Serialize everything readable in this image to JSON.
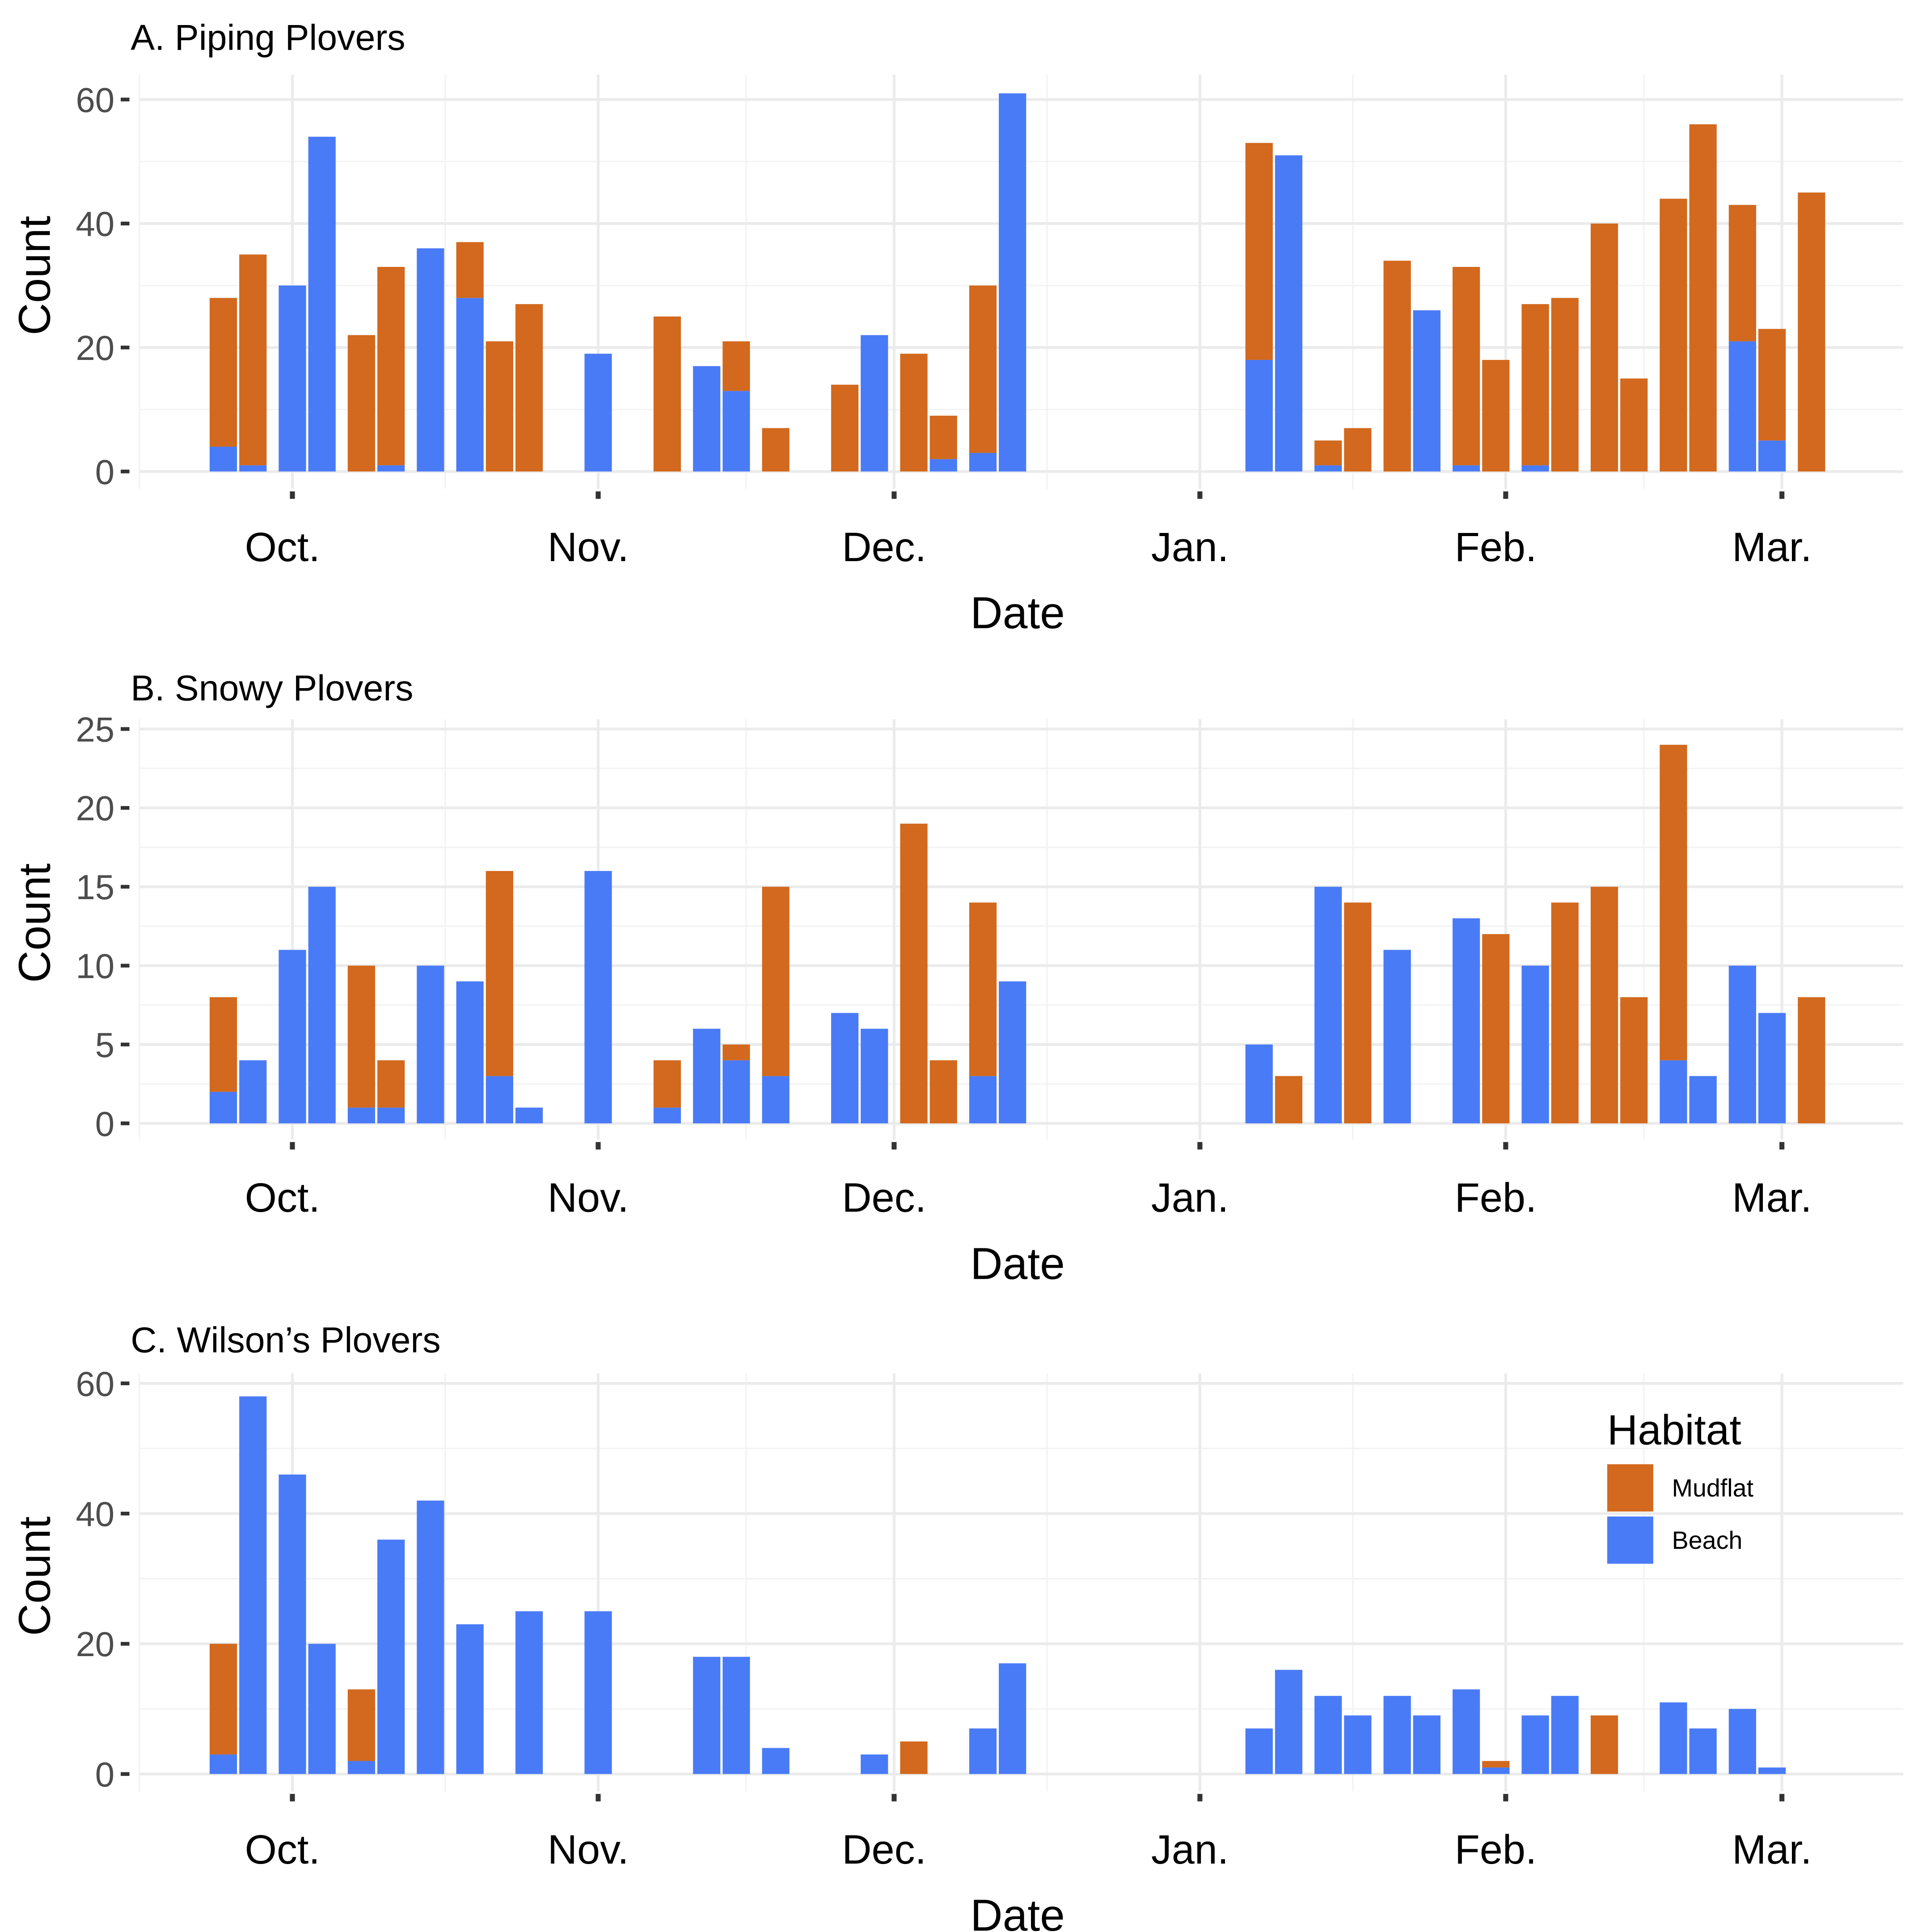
{
  "colors": {
    "Mudflat": "#D2691E",
    "Beach": "#4A7BF7",
    "grid": "#EBEBEB"
  },
  "chart_data": [
    {
      "type": "bar",
      "stacked": true,
      "title": "A. Piping Plovers",
      "xlabel": "Date",
      "ylabel": "Count",
      "ylim": [
        0,
        60
      ],
      "yticks": [
        0,
        20,
        40,
        60
      ],
      "x_units": "days since Oct. 1",
      "month_ticks": [
        {
          "label": "Oct.",
          "day": 0
        },
        {
          "label": "Nov.",
          "day": 31
        },
        {
          "label": "Dec.",
          "day": 61
        },
        {
          "label": "Jan.",
          "day": 92
        },
        {
          "label": "Feb.",
          "day": 123
        },
        {
          "label": "Mar.",
          "day": 151
        }
      ],
      "series_order": [
        "Beach",
        "Mudflat"
      ],
      "bars": [
        [
          -7,
          4,
          24
        ],
        [
          -4,
          1,
          34
        ],
        [
          0,
          30,
          0
        ],
        [
          3,
          54,
          0
        ],
        [
          7,
          0,
          22
        ],
        [
          10,
          1,
          32
        ],
        [
          14,
          36,
          0
        ],
        [
          18,
          28,
          9
        ],
        [
          21,
          0,
          21
        ],
        [
          24,
          0,
          27
        ],
        [
          31,
          19,
          0
        ],
        [
          38,
          0,
          25
        ],
        [
          42,
          17,
          0
        ],
        [
          45,
          13,
          8
        ],
        [
          49,
          0,
          7
        ],
        [
          56,
          0,
          14
        ],
        [
          59,
          22,
          0
        ],
        [
          63,
          0,
          19
        ],
        [
          66,
          2,
          7
        ],
        [
          70,
          3,
          27
        ],
        [
          73,
          61,
          0
        ],
        [
          98,
          18,
          35
        ],
        [
          101,
          51,
          0
        ],
        [
          105,
          1,
          4
        ],
        [
          108,
          0,
          7
        ],
        [
          112,
          0,
          34
        ],
        [
          115,
          26,
          0
        ],
        [
          119,
          1,
          32
        ],
        [
          122,
          0,
          18
        ],
        [
          126,
          1,
          26
        ],
        [
          129,
          0,
          28
        ],
        [
          133,
          0,
          40
        ],
        [
          136,
          0,
          15
        ],
        [
          140,
          0,
          44
        ],
        [
          143,
          0,
          56
        ],
        [
          147,
          21,
          22
        ],
        [
          150,
          5,
          18
        ],
        [
          154,
          0,
          45
        ]
      ]
    },
    {
      "type": "bar",
      "stacked": true,
      "title": "B. Snowy Plovers",
      "xlabel": "Date",
      "ylabel": "Count",
      "ylim": [
        0,
        25
      ],
      "yticks": [
        0,
        5,
        10,
        15,
        20,
        25
      ],
      "x_units": "days since Oct. 1",
      "month_ticks": [
        {
          "label": "Oct.",
          "day": 0
        },
        {
          "label": "Nov.",
          "day": 31
        },
        {
          "label": "Dec.",
          "day": 61
        },
        {
          "label": "Jan.",
          "day": 92
        },
        {
          "label": "Feb.",
          "day": 123
        },
        {
          "label": "Mar.",
          "day": 151
        }
      ],
      "series_order": [
        "Beach",
        "Mudflat"
      ],
      "bars": [
        [
          -7,
          2,
          6
        ],
        [
          -4,
          4,
          0
        ],
        [
          0,
          11,
          0
        ],
        [
          3,
          15,
          0
        ],
        [
          7,
          1,
          9
        ],
        [
          10,
          1,
          3
        ],
        [
          14,
          10,
          0
        ],
        [
          18,
          9,
          0
        ],
        [
          21,
          3,
          13
        ],
        [
          24,
          1,
          0
        ],
        [
          31,
          16,
          0
        ],
        [
          38,
          1,
          3
        ],
        [
          42,
          6,
          0
        ],
        [
          45,
          4,
          1
        ],
        [
          49,
          3,
          12
        ],
        [
          56,
          7,
          0
        ],
        [
          59,
          6,
          0
        ],
        [
          63,
          0,
          19
        ],
        [
          66,
          0,
          4
        ],
        [
          70,
          3,
          11
        ],
        [
          73,
          9,
          0
        ],
        [
          98,
          5,
          0
        ],
        [
          101,
          0,
          3
        ],
        [
          105,
          15,
          0
        ],
        [
          108,
          0,
          14
        ],
        [
          112,
          11,
          0
        ],
        [
          119,
          13,
          0
        ],
        [
          122,
          0,
          12
        ],
        [
          126,
          10,
          0
        ],
        [
          129,
          0,
          14
        ],
        [
          133,
          0,
          15
        ],
        [
          136,
          0,
          8
        ],
        [
          140,
          4,
          20
        ],
        [
          143,
          3,
          0
        ],
        [
          147,
          10,
          0
        ],
        [
          150,
          7,
          0
        ],
        [
          154,
          0,
          8
        ]
      ]
    },
    {
      "type": "bar",
      "stacked": true,
      "title": "C. Wilson’s Plovers",
      "xlabel": "Date",
      "ylabel": "Count",
      "ylim": [
        0,
        60
      ],
      "yticks": [
        0,
        20,
        40,
        60
      ],
      "x_units": "days since Oct. 1",
      "month_ticks": [
        {
          "label": "Oct.",
          "day": 0
        },
        {
          "label": "Nov.",
          "day": 31
        },
        {
          "label": "Dec.",
          "day": 61
        },
        {
          "label": "Jan.",
          "day": 92
        },
        {
          "label": "Feb.",
          "day": 123
        },
        {
          "label": "Mar.",
          "day": 151
        }
      ],
      "series_order": [
        "Beach",
        "Mudflat"
      ],
      "bars": [
        [
          -7,
          3,
          17
        ],
        [
          -4,
          58,
          0
        ],
        [
          0,
          46,
          0
        ],
        [
          3,
          20,
          0
        ],
        [
          7,
          2,
          11
        ],
        [
          10,
          36,
          0
        ],
        [
          14,
          42,
          0
        ],
        [
          18,
          23,
          0
        ],
        [
          24,
          25,
          0
        ],
        [
          31,
          25,
          0
        ],
        [
          42,
          18,
          0
        ],
        [
          45,
          18,
          0
        ],
        [
          49,
          4,
          0
        ],
        [
          59,
          3,
          0
        ],
        [
          63,
          0,
          5
        ],
        [
          70,
          7,
          0
        ],
        [
          73,
          17,
          0
        ],
        [
          98,
          7,
          0
        ],
        [
          101,
          16,
          0
        ],
        [
          105,
          12,
          0
        ],
        [
          108,
          9,
          0
        ],
        [
          112,
          12,
          0
        ],
        [
          115,
          9,
          0
        ],
        [
          119,
          13,
          0
        ],
        [
          122,
          1,
          1
        ],
        [
          126,
          9,
          0
        ],
        [
          129,
          12,
          0
        ],
        [
          133,
          0,
          9
        ],
        [
          140,
          11,
          0
        ],
        [
          143,
          7,
          0
        ],
        [
          147,
          10,
          0
        ],
        [
          150,
          1,
          0
        ]
      ],
      "legend": {
        "title": "Habitat",
        "entries": [
          "Mudflat",
          "Beach"
        ],
        "placement": "top-right"
      }
    }
  ]
}
